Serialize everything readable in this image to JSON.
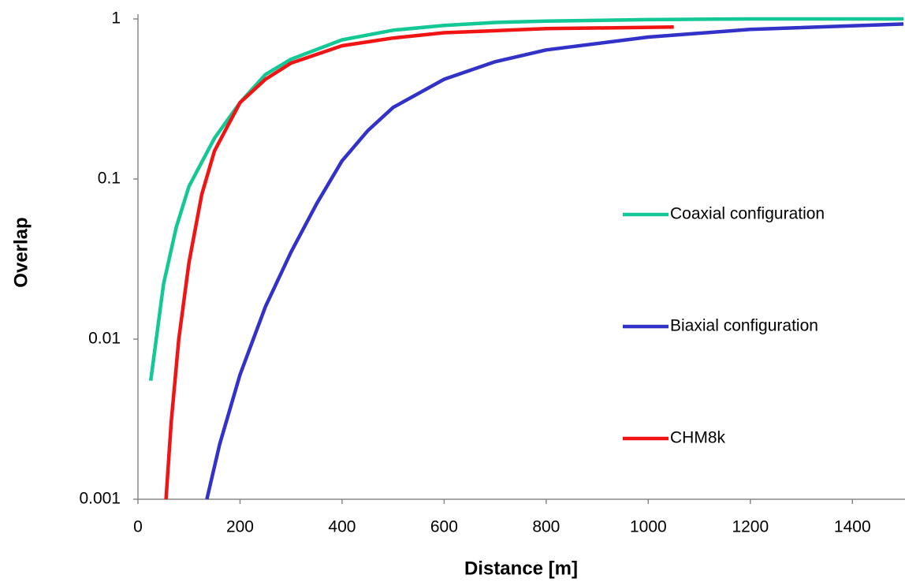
{
  "chart_data": {
    "type": "line",
    "x_label": "Distance [m]",
    "y_label": "Overlap",
    "xlim": [
      0,
      1500
    ],
    "xticks": [
      0,
      200,
      400,
      600,
      800,
      1000,
      1200,
      1400
    ],
    "ylim": [
      0.001,
      1
    ],
    "yticks": [
      0.001,
      0.01,
      0.1,
      1
    ],
    "log_y": true,
    "grid": false,
    "legend": "right",
    "series": [
      {
        "name": "Coaxial configuration",
        "color": "#14c896",
        "x": [
          25,
          50,
          75,
          100,
          150,
          200,
          250,
          300,
          400,
          500,
          600,
          700,
          800,
          1000,
          1200,
          1500
        ],
        "values": [
          0.0055,
          0.022,
          0.05,
          0.09,
          0.18,
          0.3,
          0.45,
          0.56,
          0.74,
          0.85,
          0.91,
          0.95,
          0.97,
          0.99,
          1.0,
          1.0
        ]
      },
      {
        "name": "Biaxial configuration",
        "color": "#3232c8",
        "x": [
          135,
          160,
          200,
          250,
          300,
          350,
          400,
          450,
          500,
          600,
          700,
          800,
          1000,
          1200,
          1500
        ],
        "values": [
          0.001,
          0.0022,
          0.006,
          0.016,
          0.035,
          0.07,
          0.13,
          0.2,
          0.28,
          0.42,
          0.54,
          0.64,
          0.77,
          0.86,
          0.93
        ]
      },
      {
        "name": "CHM8k",
        "color": "#f01414",
        "x": [
          55,
          65,
          80,
          100,
          125,
          150,
          200,
          250,
          300,
          400,
          500,
          600,
          800,
          1050
        ],
        "values": [
          0.001,
          0.003,
          0.01,
          0.03,
          0.08,
          0.15,
          0.3,
          0.42,
          0.53,
          0.68,
          0.76,
          0.82,
          0.87,
          0.89
        ]
      }
    ]
  }
}
